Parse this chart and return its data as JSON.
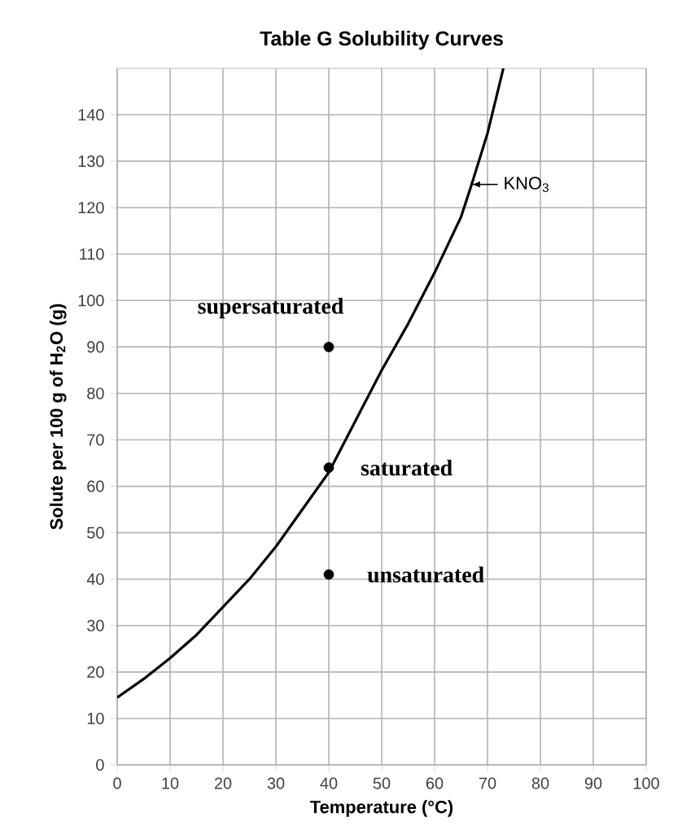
{
  "chart_data": {
    "type": "line",
    "title": "Table G   Solubility Curves",
    "xlabel": "Temperature (°C)",
    "ylabel": "Solute per 100 g of H$_{2}$O (g)",
    "xlim": [
      0,
      100
    ],
    "xticks": [
      0,
      10,
      20,
      30,
      40,
      50,
      60,
      70,
      80,
      90,
      100
    ],
    "ylim": [
      0,
      150
    ],
    "yticks": [
      0,
      10,
      20,
      30,
      40,
      50,
      60,
      70,
      80,
      90,
      100,
      110,
      120,
      130,
      140
    ],
    "grid": true,
    "series": [
      {
        "name": "KNO$_{3}$",
        "color": "#000000",
        "marker": "none",
        "x": [
          0,
          5,
          10,
          15,
          20,
          25,
          30,
          35,
          40,
          45,
          50,
          55,
          60,
          65,
          67,
          70,
          73
        ],
        "values": [
          14.5,
          18.5,
          23,
          28,
          34,
          40,
          47,
          55,
          63,
          74,
          85,
          95,
          106,
          118,
          125,
          136,
          150
        ]
      },
      {
        "type": "scatter",
        "color": "#000000",
        "marker": "circle",
        "x": [
          40,
          40,
          40
        ],
        "values": [
          90,
          64,
          41
        ]
      }
    ],
    "annotations": [
      "supersaturated",
      "saturated",
      "unsaturated"
    ]
  }
}
